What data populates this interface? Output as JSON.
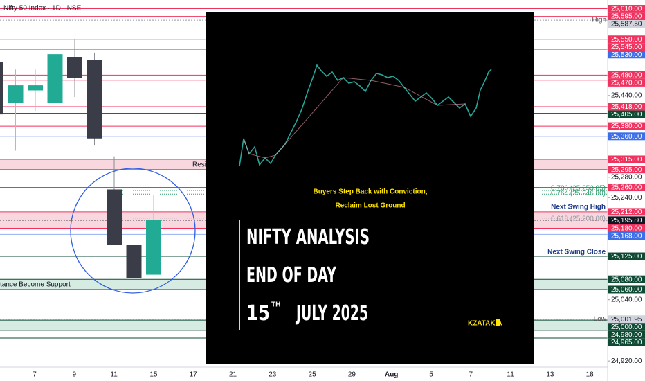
{
  "header": {
    "title": "Nifty 50 Index · 1D · NSE"
  },
  "price_axis": {
    "ylim": [
      24908,
      25627
    ],
    "ticks": [
      {
        "value": 25440,
        "label": "25,440.00"
      },
      {
        "value": 25280,
        "label": "25,280.00"
      },
      {
        "value": 25240,
        "label": "25,240.00"
      },
      {
        "value": 25040,
        "label": "25,040.00"
      },
      {
        "value": 24920,
        "label": "24,920.00"
      }
    ]
  },
  "x_axis": {
    "labels": [
      "7",
      "9",
      "11",
      "15",
      "17",
      "21",
      "23",
      "25",
      "29",
      "Aug",
      "5",
      "7",
      "11",
      "13",
      "18"
    ]
  },
  "candles": [
    {
      "open": 25505,
      "high": 25515,
      "low": 25400,
      "close": 25403
    },
    {
      "open": 25426,
      "high": 25491,
      "low": 25332,
      "close": 25460
    },
    {
      "open": 25450,
      "high": 25491,
      "low": 25410,
      "close": 25460
    },
    {
      "open": 25426,
      "high": 25546,
      "low": 25410,
      "close": 25521
    },
    {
      "open": 25515,
      "high": 25549,
      "low": 25437,
      "close": 25475
    },
    {
      "open": 25510,
      "high": 25524,
      "low": 25342,
      "close": 25356
    },
    {
      "open": 25256,
      "high": 25321,
      "low": 25148,
      "close": 25148
    },
    {
      "open": 25148,
      "high": 25148,
      "low": 25003,
      "close": 25082
    },
    {
      "open": 25089,
      "high": 25245,
      "low": 25089,
      "close": 25196
    }
  ],
  "zones": [
    {
      "from": 25295,
      "to": 25315,
      "color": "#f8d7df"
    },
    {
      "from": 25180,
      "to": 25212,
      "color": "#f8d7df"
    },
    {
      "from": 25060,
      "to": 25080,
      "color": "#d6ebe2"
    },
    {
      "from": 24980,
      "to": 25000,
      "color": "#d6ebe2"
    }
  ],
  "levels": [
    {
      "value": 25610,
      "label": "25,610.00",
      "color": "#f0325f"
    },
    {
      "value": 25595,
      "label": "25,595.00",
      "color": "#f0325f"
    },
    {
      "value": 25587.5,
      "label": "25,587.50",
      "color": "#d1d4dc"
    },
    {
      "value": 25550,
      "label": "25,550.00",
      "color": "#f0325f"
    },
    {
      "value": 25545,
      "label": "25,545.00",
      "color": "#f0325f"
    },
    {
      "value": 25530,
      "label": "25,530.00",
      "color": "#3d6ee8"
    },
    {
      "value": 25480,
      "label": "25,480.00",
      "color": "#f0325f"
    },
    {
      "value": 25470,
      "label": "25,470.00",
      "color": "#f0325f"
    },
    {
      "value": 25418,
      "label": "25,418.00",
      "color": "#f0325f"
    },
    {
      "value": 25405,
      "label": "25,405.00",
      "color": "#0f4a35"
    },
    {
      "value": 25380,
      "label": "25,380.00",
      "color": "#f0325f"
    },
    {
      "value": 25360,
      "label": "25,360.00",
      "color": "#3d6ee8"
    },
    {
      "value": 25315,
      "label": "25,315.00",
      "color": "#f0325f"
    },
    {
      "value": 25295,
      "label": "25,295.00",
      "color": "#f0325f"
    },
    {
      "value": 25260,
      "label": "25,260.00",
      "color": "#f0325f"
    },
    {
      "value": 25212,
      "label": "25,212.00",
      "color": "#f0325f"
    },
    {
      "value": 25195.8,
      "label": "25,195.80",
      "color": "#131722"
    },
    {
      "value": 25180,
      "label": "25,180.00",
      "color": "#f0325f"
    },
    {
      "value": 25168,
      "label": "25,168.00",
      "color": "#3d6ee8"
    },
    {
      "value": 25125,
      "label": "25,125.00",
      "color": "#0f4a35"
    },
    {
      "value": 25080,
      "label": "25,080.00",
      "color": "#0f4a35"
    },
    {
      "value": 25060,
      "label": "25,060.00",
      "color": "#0f4a35"
    },
    {
      "value": 25001.95,
      "label": "25,001.95",
      "color": "#d1d4dc"
    },
    {
      "value": 25000,
      "label": "25,000.00",
      "color": "#0f4a35"
    },
    {
      "value": 24980,
      "label": "24,980.00",
      "color": "#0f4a35"
    },
    {
      "value": 24965,
      "label": "24,965.00",
      "color": "#0f4a35"
    }
  ],
  "fib": [
    {
      "value": 25253.85,
      "label": "0.786 (25,253.85)",
      "color": "#2e9e6e"
    },
    {
      "value": 25246.8,
      "label": "0.764 (25,246.80)",
      "color": "#2e9e6e"
    },
    {
      "value": 25200,
      "label": "0.618 (25,200.00)",
      "color": "#9598a1"
    }
  ],
  "annotations": {
    "high": "High",
    "low": "Low",
    "resistance": "Resis",
    "support": "tance Become Support",
    "next_swing_high": "Next Swing High",
    "next_swing_close": "Next Swing Close"
  },
  "overlay": {
    "subtitle_1": "Buyers Step Back with Conviction,",
    "subtitle_2": "Reclaim Lost Ground",
    "title_1": "NIFTY ANALYSIS",
    "title_2": "END OF DAY",
    "date_day": "15",
    "date_suffix": "TH",
    "date_rest": "JULY 2025",
    "brand": "KZATAKIA"
  }
}
